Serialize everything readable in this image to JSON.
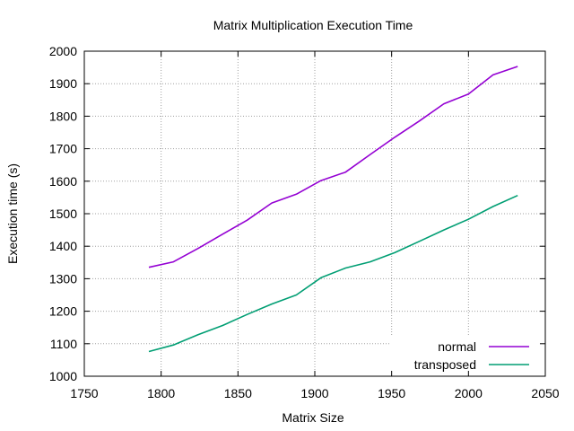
{
  "chart_data": {
    "type": "line",
    "title": "Matrix Multiplication Execution Time",
    "xlabel": "Matrix Size",
    "ylabel": "Execution time (s)",
    "xlim": [
      1750,
      2050
    ],
    "ylim": [
      1000,
      2000
    ],
    "xticks": [
      1750,
      1800,
      1850,
      1900,
      1950,
      2000,
      2050
    ],
    "yticks": [
      1000,
      1100,
      1200,
      1300,
      1400,
      1500,
      1600,
      1700,
      1800,
      1900,
      2000
    ],
    "grid": true,
    "legend_position": "bottom-right",
    "series": [
      {
        "name": "normal",
        "color": "#9400d3",
        "x": [
          1792,
          1808,
          1824,
          1840,
          1856,
          1872,
          1888,
          1904,
          1920,
          1936,
          1952,
          1968,
          1984,
          2000,
          2016,
          2032
        ],
        "y": [
          1335,
          1352,
          1393,
          1437,
          1480,
          1533,
          1560,
          1602,
          1628,
          1682,
          1735,
          1785,
          1838,
          1868,
          1927,
          1953
        ]
      },
      {
        "name": "transposed",
        "color": "#009e73",
        "x": [
          1792,
          1808,
          1824,
          1840,
          1856,
          1872,
          1888,
          1904,
          1920,
          1936,
          1952,
          1968,
          1984,
          2000,
          2016,
          2032
        ],
        "y": [
          1076,
          1096,
          1128,
          1156,
          1190,
          1222,
          1250,
          1303,
          1333,
          1352,
          1380,
          1415,
          1450,
          1483,
          1522,
          1556
        ]
      }
    ]
  }
}
